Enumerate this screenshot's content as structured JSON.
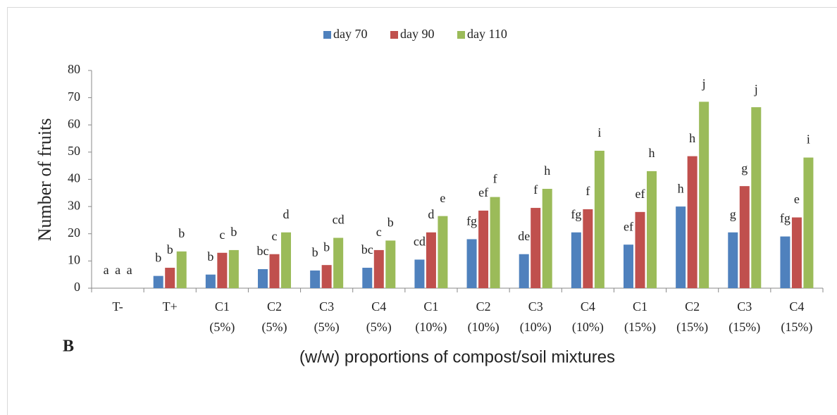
{
  "chart_data": {
    "type": "bar",
    "panel_label": "B",
    "x_label": "(w/w) proportions of compost/soil mixtures",
    "y_label": "Number of fruits",
    "categories": [
      [
        "T-"
      ],
      [
        "T+"
      ],
      [
        "C1",
        "(5%)"
      ],
      [
        "C2",
        "(5%)"
      ],
      [
        "C3",
        "(5%)"
      ],
      [
        "C4",
        "(5%)"
      ],
      [
        "C1",
        "(10%)"
      ],
      [
        "C2",
        "(10%)"
      ],
      [
        "C3",
        "(10%)"
      ],
      [
        "C4",
        "(10%)"
      ],
      [
        "C1",
        "(15%)"
      ],
      [
        "C2",
        "(15%)"
      ],
      [
        "C3",
        "(15%)"
      ],
      [
        "C4",
        "(15%)"
      ]
    ],
    "series": [
      {
        "name": "day 70",
        "color": "#4f81bd",
        "values": [
          0,
          4.5,
          5,
          7,
          6.5,
          7.5,
          10.5,
          18,
          12.5,
          20.5,
          16,
          30,
          20.5,
          19
        ],
        "letters": [
          "a",
          "b",
          "b",
          "bc",
          "b",
          "bc",
          "cd",
          "fg",
          "de",
          "fg",
          "ef",
          "h",
          "g",
          "fg"
        ]
      },
      {
        "name": "day 90",
        "color": "#c0504d",
        "values": [
          0,
          7.5,
          13,
          12.5,
          8.5,
          14,
          20.5,
          28.5,
          29.5,
          29,
          28,
          48.5,
          37.5,
          26
        ],
        "letters": [
          "a",
          "b",
          "c",
          "c",
          "b",
          "c",
          "d",
          "ef",
          "f",
          "f",
          "ef",
          "h",
          "g",
          "e"
        ]
      },
      {
        "name": "day 110",
        "color": "#9bbb59",
        "values": [
          0,
          13.5,
          14,
          20.5,
          18.5,
          17.5,
          26.5,
          33.5,
          36.5,
          50.5,
          43,
          68.5,
          66.5,
          48
        ],
        "letters": [
          "a",
          "b",
          "b",
          "d",
          "cd",
          "b",
          "e",
          "f",
          "h",
          "i",
          "h",
          "j",
          "j",
          "i"
        ]
      }
    ],
    "ylim": [
      0,
      80
    ],
    "yticks": [
      0,
      10,
      20,
      30,
      40,
      50,
      60,
      70,
      80
    ],
    "grid": false,
    "legend": "top"
  }
}
